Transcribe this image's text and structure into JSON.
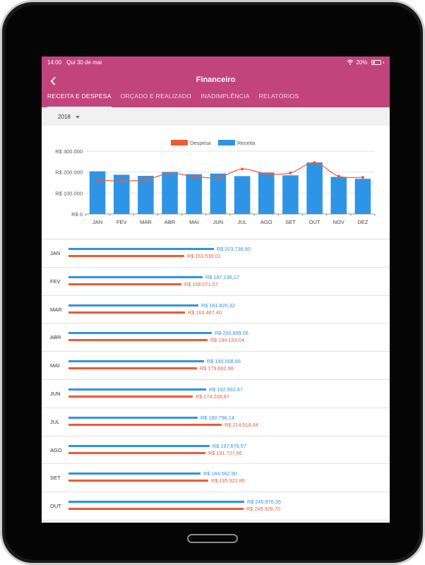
{
  "status": {
    "time": "14:00",
    "date": "Qui 30 de mai",
    "battery": "20%"
  },
  "header": {
    "title": "Financeiro"
  },
  "tabs": [
    {
      "label": "RECEITA E DESPESA"
    },
    {
      "label": "ORÇADO E REALIZADO"
    },
    {
      "label": "INADIMPLÊNCIA"
    },
    {
      "label": "RELATÓRIOS"
    }
  ],
  "filter": {
    "year": "2018"
  },
  "colors": {
    "primary": "#c2447d",
    "receita": "#2e95e6",
    "despesa": "#f05a35"
  },
  "chart_data": {
    "type": "bar",
    "categories": [
      "JAN",
      "FEV",
      "MAR",
      "ABR",
      "MAI",
      "JUN",
      "JUL",
      "AGO",
      "SET",
      "OUT",
      "NOV",
      "DEZ"
    ],
    "series": [
      {
        "name": "Receita",
        "type": "bar",
        "values": [
          203738.8,
          187236.17,
          181820.32,
          200899.06,
          190008.66,
          192992.47,
          180798.14,
          197676.57,
          184562.9,
          245976.35,
          177000,
          168000
        ]
      },
      {
        "name": "Despesa",
        "type": "line",
        "values": [
          161539.01,
          158071.57,
          163467.4,
          194153.04,
          179662.98,
          174209.87,
          214518.64,
          191727.66,
          195921.86,
          245328.7,
          180000,
          175000
        ]
      }
    ],
    "ytick_labels": [
      "R$ 0",
      "R$ 100.000",
      "R$ 200.000",
      "R$ 300.000"
    ],
    "ylim": [
      0,
      300000
    ],
    "legend_position": "top-center",
    "grid": true
  },
  "rows": [
    {
      "month": "JAN",
      "receita": "R$ 203.738,80",
      "despesa": "R$ 161.539,01"
    },
    {
      "month": "FEV",
      "receita": "R$ 187.236,17",
      "despesa": "R$ 158.071,57"
    },
    {
      "month": "MAR",
      "receita": "R$ 181.820,32",
      "despesa": "R$ 163.467,40"
    },
    {
      "month": "ABR",
      "receita": "R$ 200.899,06",
      "despesa": "R$ 194.153,04"
    },
    {
      "month": "MAI",
      "receita": "R$ 190.008,66",
      "despesa": "R$ 179.662,98"
    },
    {
      "month": "JUN",
      "receita": "R$ 192.992,47",
      "despesa": "R$ 174.209,87"
    },
    {
      "month": "JUL",
      "receita": "R$ 180.798,14",
      "despesa": "R$ 214.518,64"
    },
    {
      "month": "AGO",
      "receita": "R$ 197.676,57",
      "despesa": "R$ 191.727,66"
    },
    {
      "month": "SET",
      "receita": "R$ 184.562,90",
      "despesa": "R$ 195.921,86"
    },
    {
      "month": "OUT",
      "receita": "R$ 245.976,35",
      "despesa": "R$ 245.328,70"
    }
  ]
}
